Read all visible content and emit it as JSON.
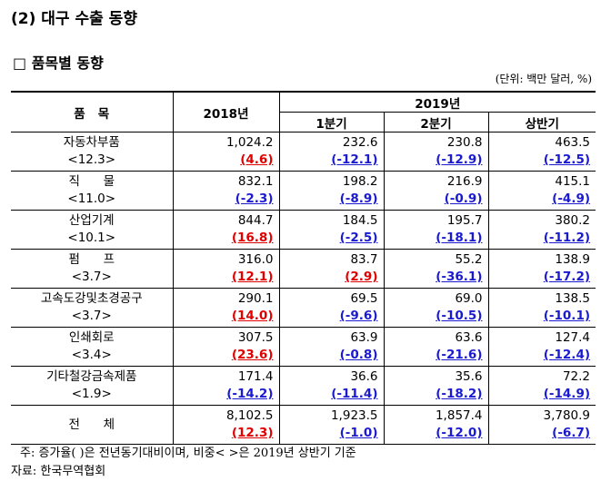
{
  "title": "(2) 대구 수출 동향",
  "subtitle": "□ 품목별 동향",
  "unit": "(단위: 백만 달러, %)",
  "table": {
    "header": {
      "item": "품   목",
      "y2018": "2018년",
      "y2019": "2019년",
      "q1": "1분기",
      "q2": "2분기",
      "h1": "상반기"
    },
    "rows": [
      {
        "name": "자동차부품",
        "share": "<12.3>",
        "values": [
          "1,024.2",
          "232.6",
          "230.8",
          "463.5"
        ],
        "changes": [
          "(4.6)",
          "(-12.1)",
          "(-12.9)",
          "(-12.5)"
        ]
      },
      {
        "name": "직      물",
        "share": "<11.0>",
        "values": [
          "832.1",
          "198.2",
          "216.9",
          "415.1"
        ],
        "changes": [
          "(-2.3)",
          "(-8.9)",
          "(-0.9)",
          "(-4.9)"
        ]
      },
      {
        "name": "산업기계",
        "share": "<10.1>",
        "values": [
          "844.7",
          "184.5",
          "195.7",
          "380.2"
        ],
        "changes": [
          "(16.8)",
          "(-2.5)",
          "(-18.1)",
          "(-11.2)"
        ]
      },
      {
        "name": "펌      프",
        "share": "<3.7>",
        "values": [
          "316.0",
          "83.7",
          "55.2",
          "138.9"
        ],
        "changes": [
          "(12.1)",
          "(2.9)",
          "(-36.1)",
          "(-17.2)"
        ]
      },
      {
        "name": "고속도강및초경공구",
        "share": "<3.7>",
        "values": [
          "290.1",
          "69.5",
          "69.0",
          "138.5"
        ],
        "changes": [
          "(14.0)",
          "(-9.6)",
          "(-10.5)",
          "(-10.1)"
        ]
      },
      {
        "name": "인쇄회로",
        "share": "<3.4>",
        "values": [
          "307.5",
          "63.9",
          "63.6",
          "127.4"
        ],
        "changes": [
          "(23.6)",
          "(-0.8)",
          "(-21.6)",
          "(-12.4)"
        ]
      },
      {
        "name": "기타철강금속제품",
        "share": "<1.9>",
        "values": [
          "171.4",
          "36.6",
          "35.6",
          "72.2"
        ],
        "changes": [
          "(-14.2)",
          "(-11.4)",
          "(-18.2)",
          "(-14.9)"
        ]
      },
      {
        "name": "전      체",
        "values": [
          "8,102.5",
          "1,923.5",
          "1,857.4",
          "3,780.9"
        ],
        "changes": [
          "(12.3)",
          "(-1.0)",
          "(-12.0)",
          "(-6.7)"
        ]
      }
    ]
  },
  "notes": [
    "주: 증가율(  )은 전년동기대비이며, 비중<  >은 2019년 상반기 기준",
    "자료: 한국무역협회"
  ]
}
